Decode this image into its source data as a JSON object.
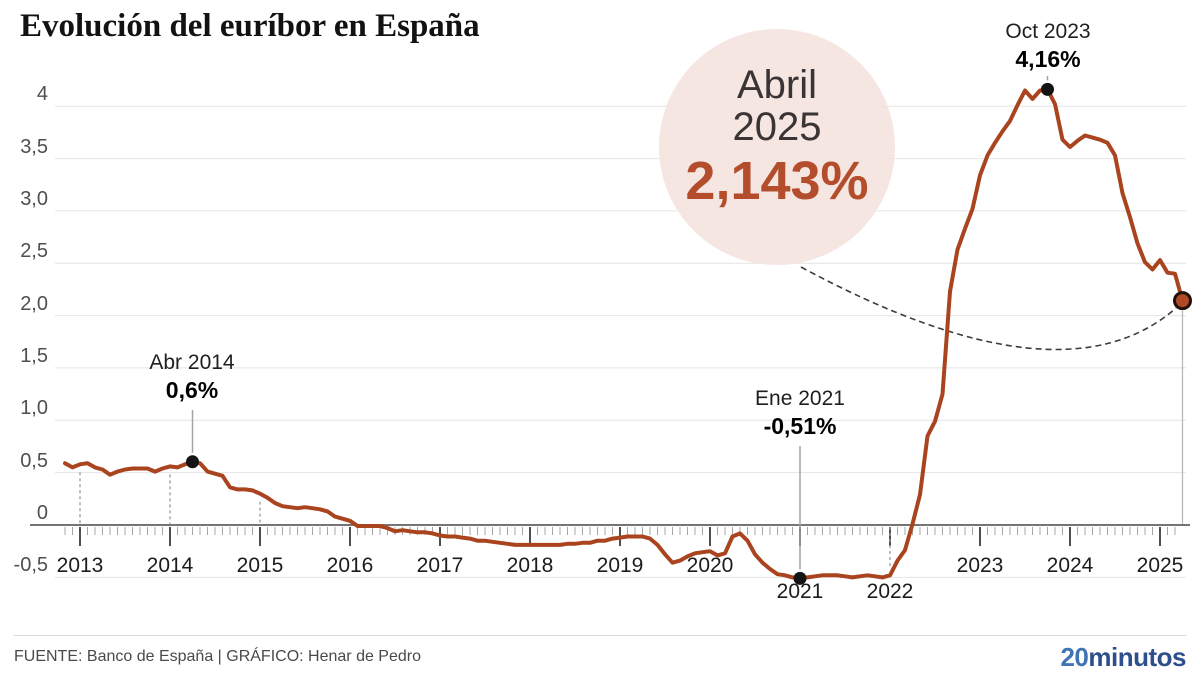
{
  "title": "Evolución del euríbor en España",
  "footer": {
    "source": "FUENTE: Banco de España  |  GRÁFICO: Henar de Pedro",
    "logo_part1": "20",
    "logo_part2": "minutos",
    "logo_color_1": "#3f74b5",
    "logo_color_2": "#2d4f8c"
  },
  "chart_data": {
    "type": "line",
    "title": "Evolución del euríbor en España",
    "xlabel": "",
    "ylabel": "",
    "ylim": [
      -0.5,
      4.16
    ],
    "xlim": [
      2012.83,
      2025.3
    ],
    "grid": "horizontal",
    "legend": "none",
    "y_ticks": [
      {
        "label": "4",
        "v": 4
      },
      {
        "label": "3,5",
        "v": 3.5
      },
      {
        "label": "3,0",
        "v": 3
      },
      {
        "label": "2,5",
        "v": 2.5
      },
      {
        "label": "2,0",
        "v": 2
      },
      {
        "label": "1,5",
        "v": 1.5
      },
      {
        "label": "1,0",
        "v": 1
      },
      {
        "label": "0,5",
        "v": 0.5
      },
      {
        "label": "0",
        "v": 0
      },
      {
        "label": "-0,5",
        "v": -0.5
      }
    ],
    "x_ticks": [
      {
        "label": "2013",
        "t": 2013,
        "row": 1
      },
      {
        "label": "2014",
        "t": 2014,
        "row": 1
      },
      {
        "label": "2015",
        "t": 2015,
        "row": 1
      },
      {
        "label": "2016",
        "t": 2016,
        "row": 1
      },
      {
        "label": "2017",
        "t": 2017,
        "row": 1
      },
      {
        "label": "2018",
        "t": 2018,
        "row": 1
      },
      {
        "label": "2019",
        "t": 2019,
        "row": 1
      },
      {
        "label": "2020",
        "t": 2020,
        "row": 1
      },
      {
        "label": "2021",
        "t": 2021,
        "row": 2
      },
      {
        "label": "2022",
        "t": 2022,
        "row": 2
      },
      {
        "label": "2023",
        "t": 2023,
        "row": 1
      },
      {
        "label": "2024",
        "t": 2024,
        "row": 1
      },
      {
        "label": "2025",
        "t": 2025,
        "row": 1
      }
    ],
    "dashed_year_guides": [
      2013,
      2014,
      2015,
      2022
    ],
    "series": [
      {
        "points": [
          [
            2012.833,
            0.59
          ],
          [
            2012.917,
            0.55
          ],
          [
            2013.0,
            0.58
          ],
          [
            2013.083,
            0.59
          ],
          [
            2013.167,
            0.55
          ],
          [
            2013.25,
            0.53
          ],
          [
            2013.333,
            0.48
          ],
          [
            2013.417,
            0.51
          ],
          [
            2013.5,
            0.53
          ],
          [
            2013.583,
            0.54
          ],
          [
            2013.667,
            0.54
          ],
          [
            2013.75,
            0.54
          ],
          [
            2013.833,
            0.51
          ],
          [
            2013.917,
            0.54
          ],
          [
            2014.0,
            0.56
          ],
          [
            2014.083,
            0.55
          ],
          [
            2014.167,
            0.58
          ],
          [
            2014.25,
            0.604
          ],
          [
            2014.333,
            0.59
          ],
          [
            2014.417,
            0.51
          ],
          [
            2014.5,
            0.49
          ],
          [
            2014.583,
            0.47
          ],
          [
            2014.667,
            0.36
          ],
          [
            2014.75,
            0.34
          ],
          [
            2014.833,
            0.34
          ],
          [
            2014.917,
            0.33
          ],
          [
            2015.0,
            0.3
          ],
          [
            2015.083,
            0.26
          ],
          [
            2015.167,
            0.21
          ],
          [
            2015.25,
            0.18
          ],
          [
            2015.333,
            0.17
          ],
          [
            2015.417,
            0.16
          ],
          [
            2015.5,
            0.17
          ],
          [
            2015.583,
            0.16
          ],
          [
            2015.667,
            0.15
          ],
          [
            2015.75,
            0.13
          ],
          [
            2015.833,
            0.08
          ],
          [
            2015.917,
            0.06
          ],
          [
            2016.0,
            0.04
          ],
          [
            2016.083,
            -0.01
          ],
          [
            2016.167,
            -0.01
          ],
          [
            2016.25,
            -0.01
          ],
          [
            2016.333,
            -0.01
          ],
          [
            2016.417,
            -0.03
          ],
          [
            2016.5,
            -0.06
          ],
          [
            2016.583,
            -0.05
          ],
          [
            2016.667,
            -0.06
          ],
          [
            2016.75,
            -0.07
          ],
          [
            2016.833,
            -0.07
          ],
          [
            2016.917,
            -0.08
          ],
          [
            2017.0,
            -0.1
          ],
          [
            2017.083,
            -0.11
          ],
          [
            2017.167,
            -0.11
          ],
          [
            2017.25,
            -0.12
          ],
          [
            2017.333,
            -0.13
          ],
          [
            2017.417,
            -0.15
          ],
          [
            2017.5,
            -0.15
          ],
          [
            2017.583,
            -0.16
          ],
          [
            2017.667,
            -0.17
          ],
          [
            2017.75,
            -0.18
          ],
          [
            2017.833,
            -0.19
          ],
          [
            2017.917,
            -0.19
          ],
          [
            2018.0,
            -0.19
          ],
          [
            2018.083,
            -0.19
          ],
          [
            2018.167,
            -0.19
          ],
          [
            2018.25,
            -0.19
          ],
          [
            2018.333,
            -0.19
          ],
          [
            2018.417,
            -0.18
          ],
          [
            2018.5,
            -0.18
          ],
          [
            2018.583,
            -0.17
          ],
          [
            2018.667,
            -0.17
          ],
          [
            2018.75,
            -0.15
          ],
          [
            2018.833,
            -0.15
          ],
          [
            2018.917,
            -0.13
          ],
          [
            2019.0,
            -0.12
          ],
          [
            2019.083,
            -0.11
          ],
          [
            2019.167,
            -0.11
          ],
          [
            2019.25,
            -0.11
          ],
          [
            2019.333,
            -0.13
          ],
          [
            2019.417,
            -0.19
          ],
          [
            2019.5,
            -0.28
          ],
          [
            2019.583,
            -0.36
          ],
          [
            2019.667,
            -0.34
          ],
          [
            2019.75,
            -0.3
          ],
          [
            2019.833,
            -0.27
          ],
          [
            2019.917,
            -0.26
          ],
          [
            2020.0,
            -0.25
          ],
          [
            2020.083,
            -0.29
          ],
          [
            2020.167,
            -0.27
          ],
          [
            2020.25,
            -0.11
          ],
          [
            2020.333,
            -0.08
          ],
          [
            2020.417,
            -0.15
          ],
          [
            2020.5,
            -0.28
          ],
          [
            2020.583,
            -0.36
          ],
          [
            2020.667,
            -0.42
          ],
          [
            2020.75,
            -0.47
          ],
          [
            2020.833,
            -0.48
          ],
          [
            2020.917,
            -0.5
          ],
          [
            2021.0,
            -0.51
          ],
          [
            2021.083,
            -0.5
          ],
          [
            2021.167,
            -0.49
          ],
          [
            2021.25,
            -0.48
          ],
          [
            2021.333,
            -0.48
          ],
          [
            2021.417,
            -0.48
          ],
          [
            2021.5,
            -0.49
          ],
          [
            2021.583,
            -0.5
          ],
          [
            2021.667,
            -0.49
          ],
          [
            2021.75,
            -0.48
          ],
          [
            2021.833,
            -0.49
          ],
          [
            2021.917,
            -0.5
          ],
          [
            2022.0,
            -0.48
          ],
          [
            2022.083,
            -0.34
          ],
          [
            2022.167,
            -0.24
          ],
          [
            2022.25,
            0.01
          ],
          [
            2022.333,
            0.29
          ],
          [
            2022.417,
            0.85
          ],
          [
            2022.5,
            0.99
          ],
          [
            2022.583,
            1.25
          ],
          [
            2022.667,
            2.23
          ],
          [
            2022.75,
            2.63
          ],
          [
            2022.833,
            2.83
          ],
          [
            2022.917,
            3.02
          ],
          [
            2023.0,
            3.34
          ],
          [
            2023.083,
            3.53
          ],
          [
            2023.167,
            3.65
          ],
          [
            2023.25,
            3.76
          ],
          [
            2023.333,
            3.86
          ],
          [
            2023.417,
            4.01
          ],
          [
            2023.5,
            4.15
          ],
          [
            2023.583,
            4.07
          ],
          [
            2023.667,
            4.15
          ],
          [
            2023.75,
            4.16
          ],
          [
            2023.833,
            4.02
          ],
          [
            2023.917,
            3.68
          ],
          [
            2024.0,
            3.61
          ],
          [
            2024.083,
            3.67
          ],
          [
            2024.167,
            3.72
          ],
          [
            2024.25,
            3.7
          ],
          [
            2024.333,
            3.68
          ],
          [
            2024.417,
            3.65
          ],
          [
            2024.5,
            3.53
          ],
          [
            2024.583,
            3.17
          ],
          [
            2024.667,
            2.94
          ],
          [
            2024.75,
            2.69
          ],
          [
            2024.833,
            2.51
          ],
          [
            2024.917,
            2.44
          ],
          [
            2025.0,
            2.53
          ],
          [
            2025.083,
            2.41
          ],
          [
            2025.167,
            2.4
          ],
          [
            2025.25,
            2.143
          ]
        ]
      }
    ],
    "annotations": [
      {
        "id": "abr-2014",
        "period_label": "Abr 2014",
        "value_label": "0,6%",
        "t": 2014.25,
        "v": 0.604
      },
      {
        "id": "ene-2021",
        "period_label": "Ene 2021",
        "value_label": "-0,51%",
        "t": 2021.0,
        "v": -0.51
      },
      {
        "id": "oct-2023",
        "period_label": "Oct 2023",
        "value_label": "4,16%",
        "t": 2023.75,
        "v": 4.16
      }
    ],
    "callout": {
      "line1": "Abril",
      "line2": "2025",
      "value_label": "2,143%",
      "t": 2025.25,
      "v": 2.143
    },
    "colors": {
      "line": "#a9441f",
      "final_marker_fill": "#b04a24",
      "final_marker_stroke": "#20110a",
      "accent_number": "#b34d2c",
      "callout_bg": "#f4e4e0",
      "gridline": "#e4e4e4",
      "axis": "#757575",
      "annotation_dot": "#141414"
    }
  }
}
